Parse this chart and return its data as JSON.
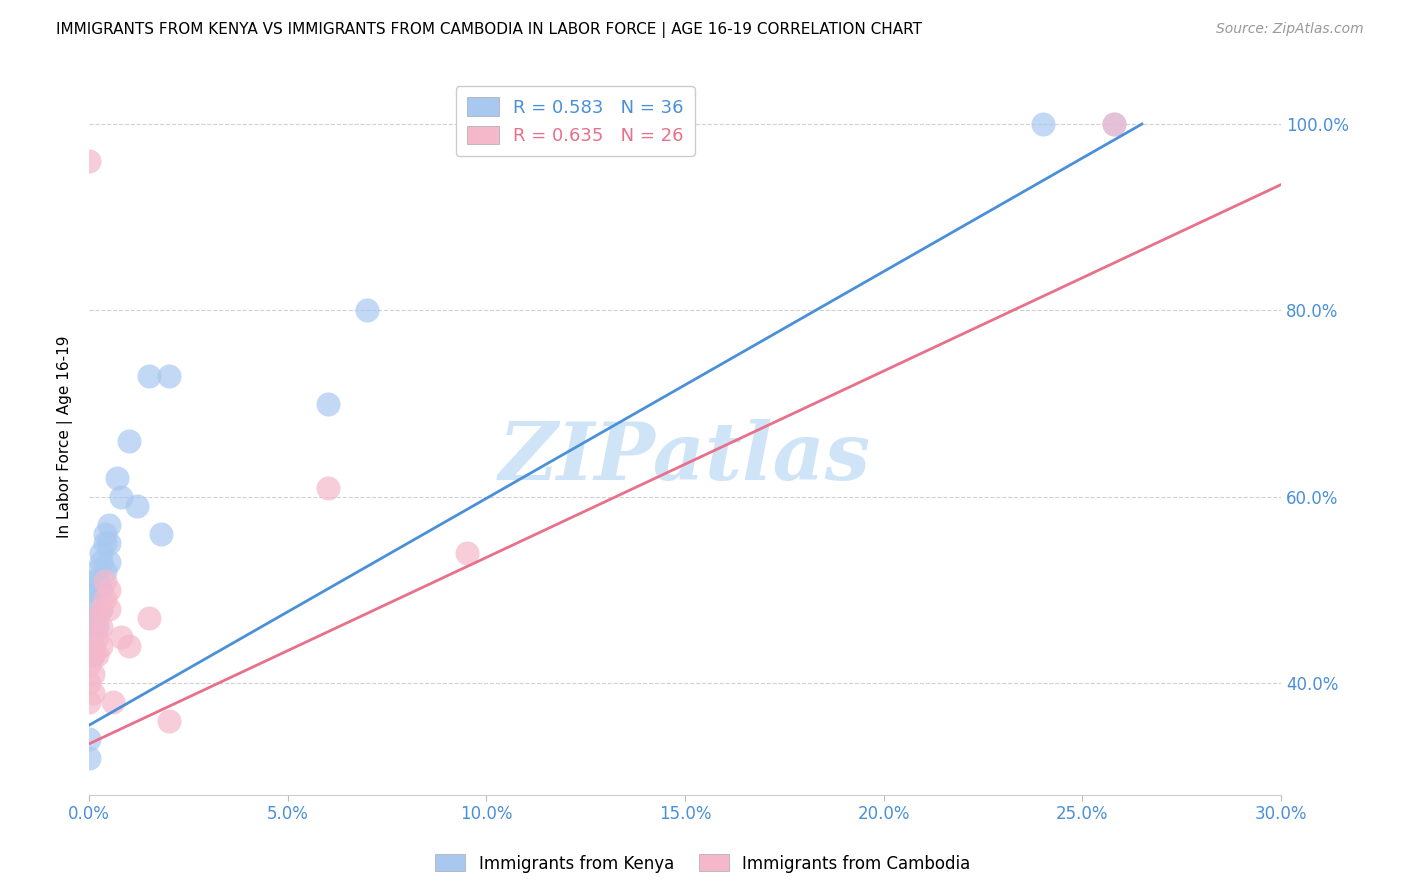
{
  "title": "IMMIGRANTS FROM KENYA VS IMMIGRANTS FROM CAMBODIA IN LABOR FORCE | AGE 16-19 CORRELATION CHART",
  "source": "Source: ZipAtlas.com",
  "ylabel": "In Labor Force | Age 16-19",
  "xlim": [
    0.0,
    0.3
  ],
  "ylim": [
    0.28,
    1.05
  ],
  "xticks": [
    0.0,
    0.05,
    0.1,
    0.15,
    0.2,
    0.25,
    0.3
  ],
  "yticks": [
    0.4,
    0.6,
    0.8,
    1.0
  ],
  "kenya_color": "#a8c8f0",
  "cambodia_color": "#f5b8cb",
  "kenya_line_color": "#4a90d9",
  "cambodia_line_color": "#e8708a",
  "kenya_R": 0.583,
  "kenya_N": 36,
  "cambodia_R": 0.635,
  "cambodia_N": 26,
  "watermark_text": "ZIPatlas",
  "watermark_color": "#d0e4f7",
  "title_fontsize": 11,
  "axis_tick_color": "#4a90d9",
  "grid_color": "#cccccc",
  "legend_fontsize": 13,
  "kenya_line_x0": 0.0,
  "kenya_line_y0": 0.355,
  "kenya_line_x1": 0.265,
  "kenya_line_y1": 1.0,
  "cambodia_line_x0": 0.0,
  "cambodia_line_y0": 0.335,
  "cambodia_line_x1": 0.3,
  "cambodia_line_y1": 0.935,
  "kenya_x": [
    0.0,
    0.0,
    0.0,
    0.0,
    0.0,
    0.001,
    0.001,
    0.001,
    0.001,
    0.002,
    0.002,
    0.002,
    0.002,
    0.003,
    0.003,
    0.003,
    0.003,
    0.004,
    0.004,
    0.004,
    0.005,
    0.005,
    0.005,
    0.007,
    0.008,
    0.01,
    0.012,
    0.015,
    0.018,
    0.02,
    0.06,
    0.07,
    0.24,
    0.258,
    0.0,
    0.0
  ],
  "kenya_y": [
    0.44,
    0.46,
    0.47,
    0.48,
    0.49,
    0.5,
    0.51,
    0.44,
    0.43,
    0.5,
    0.51,
    0.52,
    0.46,
    0.53,
    0.54,
    0.5,
    0.48,
    0.55,
    0.56,
    0.52,
    0.57,
    0.53,
    0.55,
    0.62,
    0.6,
    0.66,
    0.59,
    0.73,
    0.56,
    0.73,
    0.7,
    0.8,
    1.0,
    1.0,
    0.34,
    0.32
  ],
  "cambodia_x": [
    0.0,
    0.0,
    0.0,
    0.001,
    0.001,
    0.001,
    0.001,
    0.002,
    0.002,
    0.002,
    0.003,
    0.003,
    0.003,
    0.004,
    0.004,
    0.005,
    0.005,
    0.006,
    0.008,
    0.01,
    0.015,
    0.02,
    0.06,
    0.095,
    0.258,
    0.0
  ],
  "cambodia_y": [
    0.42,
    0.4,
    0.38,
    0.43,
    0.41,
    0.39,
    0.44,
    0.47,
    0.45,
    0.43,
    0.48,
    0.46,
    0.44,
    0.51,
    0.49,
    0.5,
    0.48,
    0.38,
    0.45,
    0.44,
    0.47,
    0.36,
    0.61,
    0.54,
    1.0,
    0.96
  ]
}
